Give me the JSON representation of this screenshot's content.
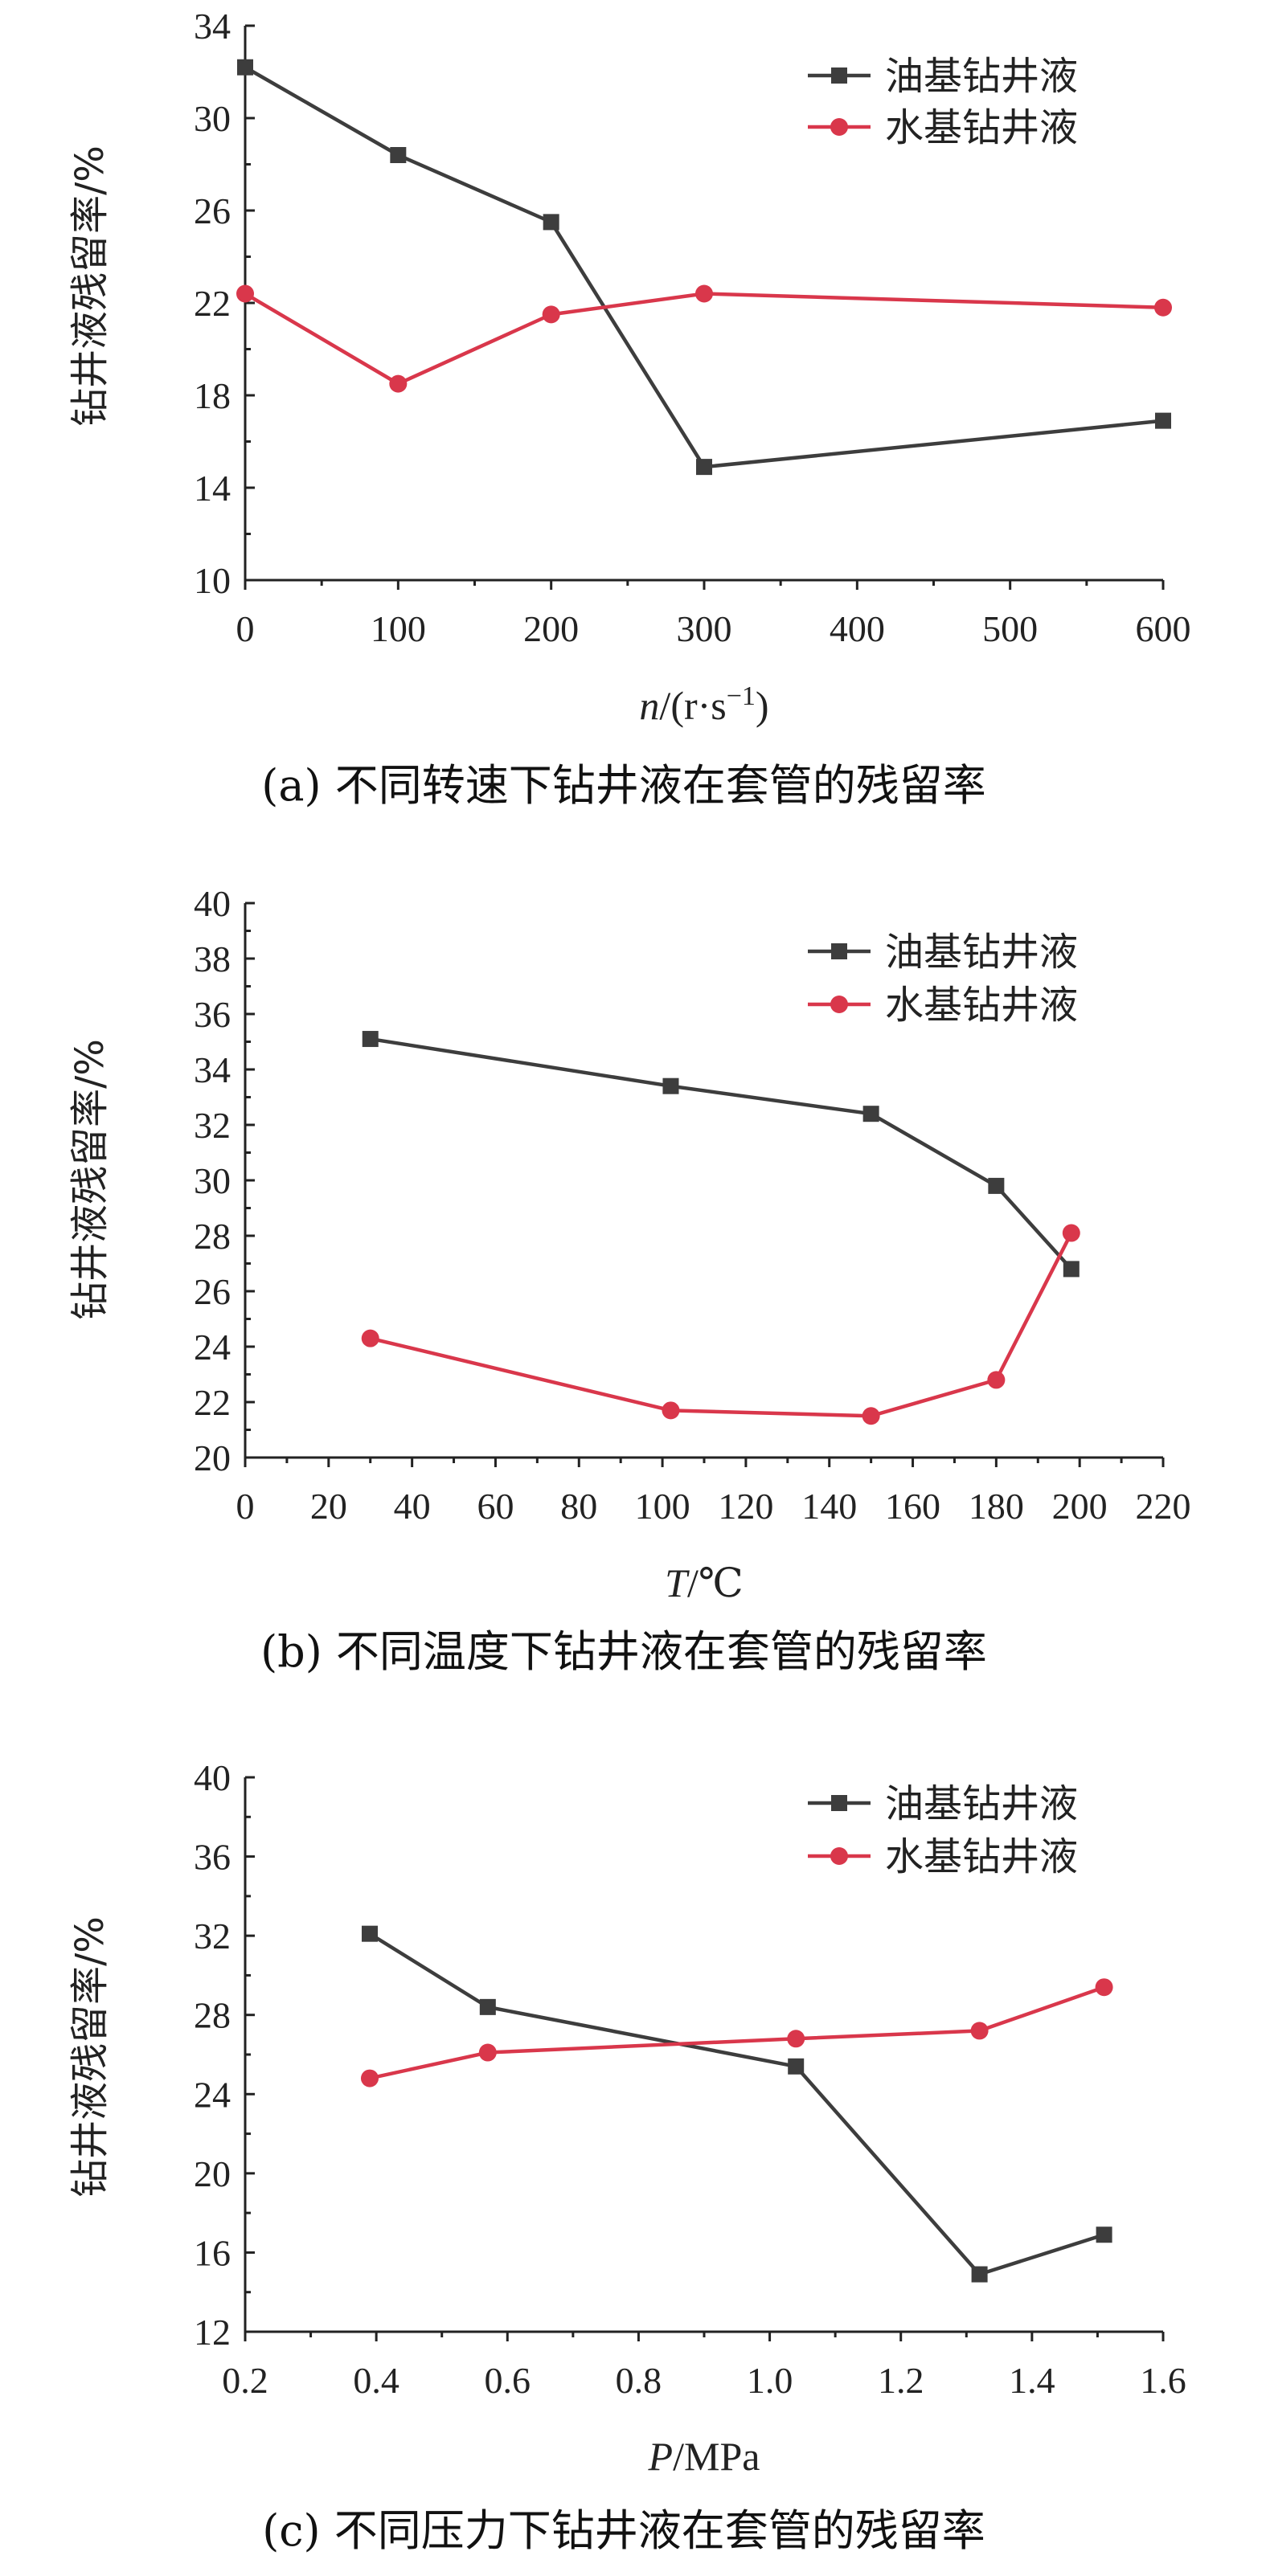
{
  "colors": {
    "oil": "#3d3d3d",
    "water": "#d9374b"
  },
  "chart_data": [
    {
      "id": "a",
      "type": "line",
      "caption": "(a) 不同转速下钻井液在套管的残留率",
      "xlabel_main": "n",
      "xlabel_rest": "/(r·s",
      "xlabel_sup": "−1",
      "xlabel_tail": ")",
      "ylabel": "钻井液残留率/%",
      "x_scale": "categorical",
      "categories": [
        "0",
        "100",
        "200",
        "300",
        "400",
        "500",
        "600"
      ],
      "ylim": [
        10,
        34
      ],
      "yticks": [
        10,
        14,
        18,
        22,
        26,
        30,
        34
      ],
      "series": [
        {
          "name": "油基钻井液",
          "marker": "square",
          "color": "#3d3d3d",
          "x": [
            "0",
            "100",
            "200",
            "300",
            "600"
          ],
          "y": [
            32.2,
            28.4,
            25.5,
            14.9,
            16.9
          ]
        },
        {
          "name": "水基钻井液",
          "marker": "circle",
          "color": "#d9374b",
          "x": [
            "0",
            "100",
            "200",
            "300",
            "600"
          ],
          "y": [
            22.4,
            18.5,
            21.5,
            22.4,
            21.8
          ]
        }
      ]
    },
    {
      "id": "b",
      "type": "line",
      "caption": "(b) 不同温度下钻井液在套管的残留率",
      "xlabel_main": "T",
      "xlabel_rest": "/℃",
      "xlabel_sup": "",
      "xlabel_tail": "",
      "ylabel": "钻井液残留率/%",
      "x_scale": "linear",
      "xlim": [
        0,
        220
      ],
      "xticks": [
        0,
        20,
        40,
        60,
        80,
        100,
        120,
        140,
        160,
        180,
        200,
        220
      ],
      "ylim": [
        20,
        40
      ],
      "yticks": [
        20,
        22,
        24,
        26,
        28,
        30,
        32,
        34,
        36,
        38,
        40
      ],
      "series": [
        {
          "name": "油基钻井液",
          "marker": "square",
          "color": "#3d3d3d",
          "x": [
            30,
            102,
            150,
            180,
            198
          ],
          "y": [
            35.1,
            33.4,
            32.4,
            29.8,
            26.8
          ]
        },
        {
          "name": "水基钻井液",
          "marker": "circle",
          "color": "#d9374b",
          "x": [
            30,
            102,
            150,
            180,
            198
          ],
          "y": [
            24.3,
            21.7,
            21.5,
            22.8,
            28.1
          ]
        }
      ]
    },
    {
      "id": "c",
      "type": "line",
      "caption": "(c) 不同压力下钻井液在套管的残留率",
      "xlabel_main": "P",
      "xlabel_rest": "/MPa",
      "xlabel_sup": "",
      "xlabel_tail": "",
      "ylabel": "钻井液残留率/%",
      "x_scale": "linear",
      "xlim": [
        0.2,
        1.6
      ],
      "xticks": [
        "0.2",
        "0.4",
        "0.6",
        "0.8",
        "1.0",
        "1.2",
        "1.4",
        "1.6"
      ],
      "ylim": [
        12,
        40
      ],
      "yticks": [
        12,
        16,
        20,
        24,
        28,
        32,
        36,
        40
      ],
      "series": [
        {
          "name": "油基钻井液",
          "marker": "square",
          "color": "#3d3d3d",
          "x": [
            0.39,
            0.57,
            1.04,
            1.32,
            1.51
          ],
          "y": [
            32.1,
            28.4,
            25.4,
            14.9,
            16.9
          ]
        },
        {
          "name": "水基钻井液",
          "marker": "circle",
          "color": "#d9374b",
          "x": [
            0.39,
            0.57,
            1.04,
            1.32,
            1.51
          ],
          "y": [
            24.8,
            26.1,
            26.8,
            27.2,
            29.4
          ]
        }
      ]
    }
  ]
}
